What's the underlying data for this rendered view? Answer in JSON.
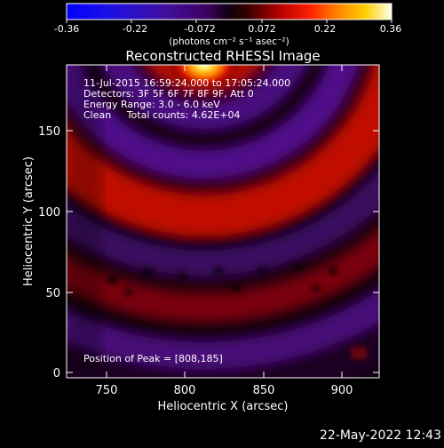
{
  "colorbar": {
    "tick_labels": [
      "-0.36",
      "-0.22",
      "-0.072",
      "0.072",
      "0.22",
      "0.36"
    ],
    "units": "(photons cm⁻² s⁻¹ asec⁻²)"
  },
  "plot": {
    "title": "Reconstructed RHESSI Image",
    "info_lines": [
      "11-Jul-2015 16:59:24.000 to 17:05:24.000",
      "Detectors: 3F 5F 6F 7F 8F 9F, Att 0",
      "Energy Range: 3.0 - 6.0 keV",
      "Clean     Total counts: 4.62E+04"
    ],
    "peak_text": "Position of Peak = [808,185]",
    "xlabel": "Heliocentric X (arcsec)",
    "ylabel": "Heliocentric Y (arcsec)",
    "x_ticks": [
      "750",
      "800",
      "850",
      "900"
    ],
    "y_ticks": [
      "0",
      "50",
      "100",
      "150"
    ]
  },
  "footer": {
    "timestamp": "22-May-2022 12:43"
  }
}
